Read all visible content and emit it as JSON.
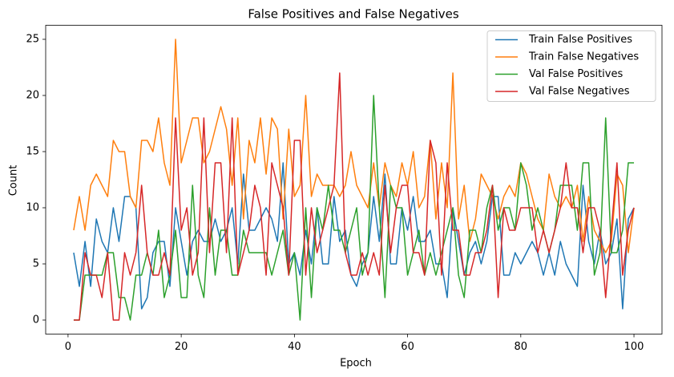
{
  "chart_data": {
    "type": "line",
    "title": "False Positives and False Negatives",
    "x_label": "Epoch",
    "y_label": "Count",
    "x": [
      1,
      2,
      3,
      4,
      5,
      6,
      7,
      8,
      9,
      10,
      11,
      12,
      13,
      14,
      15,
      16,
      17,
      18,
      19,
      20,
      21,
      22,
      23,
      24,
      25,
      26,
      27,
      28,
      29,
      30,
      31,
      32,
      33,
      34,
      35,
      36,
      37,
      38,
      39,
      40,
      41,
      42,
      43,
      44,
      45,
      46,
      47,
      48,
      49,
      50,
      51,
      52,
      53,
      54,
      55,
      56,
      57,
      58,
      59,
      60,
      61,
      62,
      63,
      64,
      65,
      66,
      67,
      68,
      69,
      70,
      71,
      72,
      73,
      74,
      75,
      76,
      77,
      78,
      79,
      80,
      81,
      82,
      83,
      84,
      85,
      86,
      87,
      88,
      89,
      90,
      91,
      92,
      93,
      94,
      95,
      96,
      97,
      98,
      99,
      100
    ],
    "series": [
      {
        "name": "Train False Positives",
        "color": "#1f77b4",
        "values": [
          6,
          3,
          7,
          3,
          9,
          7,
          6,
          10,
          7,
          11,
          11,
          10,
          1,
          2,
          6,
          7,
          7,
          3,
          10,
          7,
          4,
          7,
          8,
          7,
          7,
          9,
          7,
          8,
          10,
          5,
          13,
          8,
          8,
          9,
          10,
          9,
          7,
          14,
          5,
          6,
          4,
          8,
          5,
          10,
          5,
          5,
          11,
          7,
          8,
          4,
          3,
          5,
          6,
          11,
          7,
          13,
          5,
          5,
          10,
          8,
          11,
          7,
          7,
          8,
          5,
          5,
          2,
          10,
          7,
          4,
          6,
          7,
          5,
          7,
          11,
          11,
          4,
          4,
          6,
          5,
          6,
          7,
          6,
          4,
          6,
          4,
          7,
          5,
          4,
          3,
          12,
          7,
          5,
          8,
          5,
          6,
          9,
          1,
          9,
          10
        ]
      },
      {
        "name": "Train False Negatives",
        "color": "#ff7f0e",
        "values": [
          8,
          11,
          8,
          12,
          13,
          12,
          11,
          16,
          15,
          15,
          11,
          10,
          16,
          16,
          15,
          18,
          14,
          12,
          25,
          14,
          16,
          18,
          18,
          14,
          15,
          17,
          19,
          17,
          12,
          18,
          9,
          16,
          14,
          18,
          13,
          18,
          17,
          9,
          17,
          11,
          12,
          20,
          11,
          13,
          12,
          12,
          12,
          11,
          12,
          15,
          12,
          11,
          10,
          14,
          10,
          14,
          12,
          11,
          14,
          12,
          15,
          10,
          11,
          16,
          9,
          14,
          10,
          22,
          9,
          12,
          7,
          9,
          13,
          12,
          11,
          9,
          11,
          12,
          11,
          14,
          13,
          11,
          9,
          8,
          13,
          11,
          10,
          11,
          10,
          12,
          7,
          11,
          8,
          7,
          6,
          7,
          13,
          12,
          6,
          10
        ]
      },
      {
        "name": "Val False Positives",
        "color": "#2ca02c",
        "values": [
          0,
          0,
          4,
          4,
          4,
          4,
          6,
          6,
          2,
          2,
          0,
          4,
          4,
          6,
          4,
          8,
          2,
          4,
          8,
          2,
          2,
          12,
          4,
          2,
          10,
          4,
          8,
          8,
          4,
          4,
          8,
          6,
          6,
          6,
          6,
          4,
          6,
          8,
          4,
          6,
          0,
          10,
          2,
          10,
          8,
          12,
          8,
          8,
          6,
          8,
          10,
          4,
          6,
          20,
          10,
          2,
          12,
          10,
          10,
          4,
          6,
          8,
          4,
          6,
          4,
          6,
          8,
          10,
          4,
          2,
          8,
          8,
          6,
          10,
          12,
          8,
          10,
          10,
          8,
          14,
          12,
          8,
          10,
          8,
          6,
          8,
          12,
          12,
          12,
          8,
          14,
          14,
          4,
          6,
          18,
          6,
          6,
          8,
          14,
          14
        ]
      },
      {
        "name": "Val False Negatives",
        "color": "#d62728",
        "values": [
          0,
          0,
          6,
          4,
          4,
          2,
          6,
          0,
          0,
          6,
          4,
          6,
          12,
          6,
          4,
          4,
          6,
          4,
          18,
          8,
          10,
          4,
          6,
          18,
          6,
          14,
          14,
          6,
          18,
          4,
          6,
          8,
          12,
          10,
          4,
          14,
          12,
          10,
          4,
          16,
          16,
          4,
          10,
          6,
          8,
          10,
          12,
          22,
          6,
          4,
          4,
          6,
          4,
          6,
          4,
          12,
          6,
          10,
          12,
          12,
          6,
          6,
          4,
          16,
          14,
          4,
          14,
          8,
          8,
          4,
          4,
          6,
          6,
          8,
          12,
          2,
          10,
          8,
          8,
          10,
          10,
          10,
          6,
          8,
          6,
          8,
          10,
          14,
          10,
          10,
          6,
          10,
          10,
          8,
          2,
          8,
          14,
          4,
          8,
          10
        ]
      }
    ],
    "xlim": [
      -3.95,
      104.95
    ],
    "ylim": [
      -1.25,
      26.25
    ],
    "xticks": [
      0,
      20,
      40,
      60,
      80,
      100
    ],
    "yticks": [
      0,
      5,
      10,
      15,
      20,
      25
    ],
    "grid": false,
    "legend": "upper right"
  }
}
